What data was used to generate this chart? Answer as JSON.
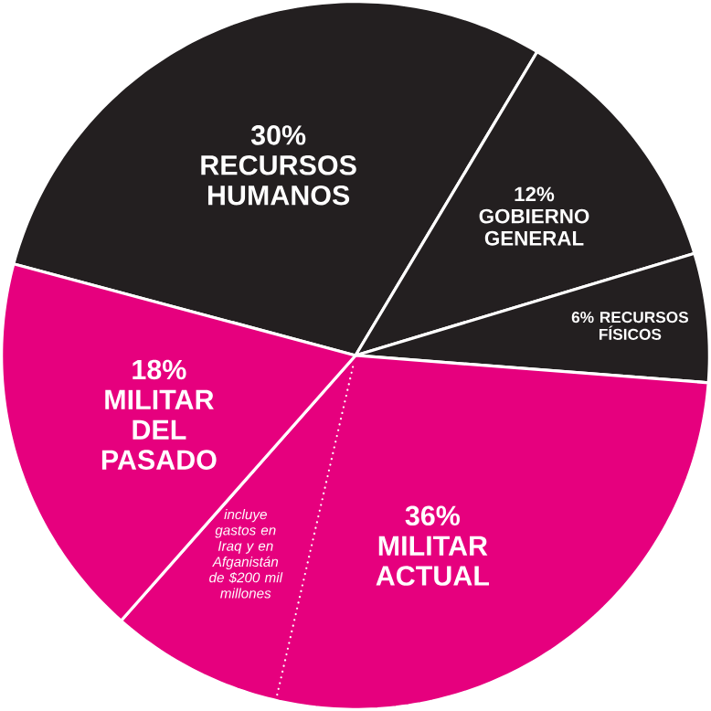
{
  "chart_data": {
    "type": "pie",
    "categories": [
      "RECURSOS HUMANOS",
      "GOBIERNO GENERAL",
      "RECURSOS FÍSICOS",
      "MILITAR ACTUAL",
      "MILITAR DEL PASADO"
    ],
    "values": [
      30,
      12,
      6,
      36,
      18
    ],
    "value_labels": [
      "30%",
      "12%",
      "6%",
      "36%",
      "18%"
    ],
    "colors": [
      "#231f20",
      "#231f20",
      "#231f20",
      "#e6007e",
      "#e6007e"
    ],
    "annotations": [
      "incluye gastos en Iraq y en Afganistán de $200 mil millones"
    ]
  }
}
